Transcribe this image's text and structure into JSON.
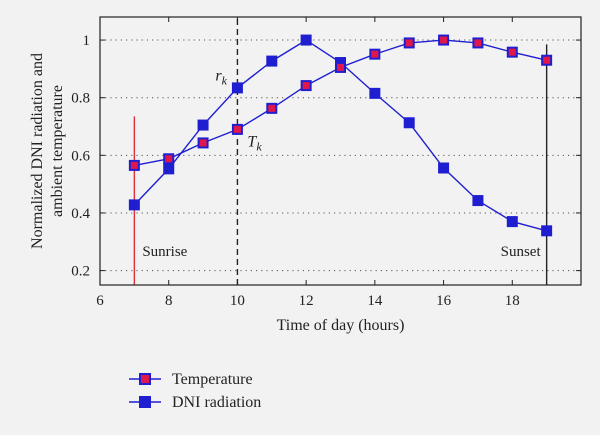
{
  "chart_data": {
    "type": "line",
    "xlabel": "Time of day (hours)",
    "ylabel": [
      "Normalized DNI radiation and",
      "ambient temperature"
    ],
    "xlim": [
      6,
      20
    ],
    "ylim": [
      0.15,
      1.08
    ],
    "xticks": [
      6,
      8,
      10,
      12,
      14,
      16,
      18
    ],
    "yticks": [
      0.2,
      0.4,
      0.6,
      0.8,
      1
    ],
    "ytick_labels": [
      "0.2",
      "0.4",
      "0.6",
      "0.8",
      "1"
    ],
    "grid": "dotted",
    "series": [
      {
        "name": "Temperature",
        "color": "#1f1fd1",
        "marker_fill": "#e0174a",
        "marker_edge": "#1f1fd1",
        "x": [
          7,
          8,
          9,
          10,
          11,
          12,
          13,
          14,
          15,
          16,
          17,
          18,
          19
        ],
        "y": [
          0.565,
          0.588,
          0.643,
          0.69,
          0.763,
          0.842,
          0.905,
          0.951,
          0.99,
          1.0,
          0.99,
          0.958,
          0.93
        ]
      },
      {
        "name": "DNI radiation",
        "color": "#1f1fd1",
        "marker_fill": "#1f1fd1",
        "marker_edge": "#1f1fd1",
        "x": [
          7,
          8,
          9,
          10,
          11,
          12,
          13,
          14,
          15,
          16,
          17,
          18,
          19
        ],
        "y": [
          0.428,
          0.553,
          0.705,
          0.834,
          0.927,
          1.0,
          0.922,
          0.815,
          0.713,
          0.556,
          0.443,
          0.37,
          0.338
        ]
      }
    ],
    "vlines": [
      {
        "x": 7,
        "color": "#e0303a",
        "style": "solid",
        "y_from": 0.15,
        "y_to": 0.735
      },
      {
        "x": 10,
        "color": "#222222",
        "style": "dashed",
        "y_from": 0.15,
        "y_to": 1.08
      },
      {
        "x": 19,
        "color": "#222222",
        "style": "solid",
        "y_from": 0.15,
        "y_to": 0.985
      }
    ],
    "annotations": {
      "sunrise": "Sunrise",
      "sunset": "Sunset",
      "r_main": "r",
      "r_sub": "k",
      "t_main": "T",
      "t_sub": "k"
    },
    "legend": {
      "placement": "bottom-left",
      "entries": [
        "Temperature",
        "DNI radiation"
      ]
    }
  }
}
